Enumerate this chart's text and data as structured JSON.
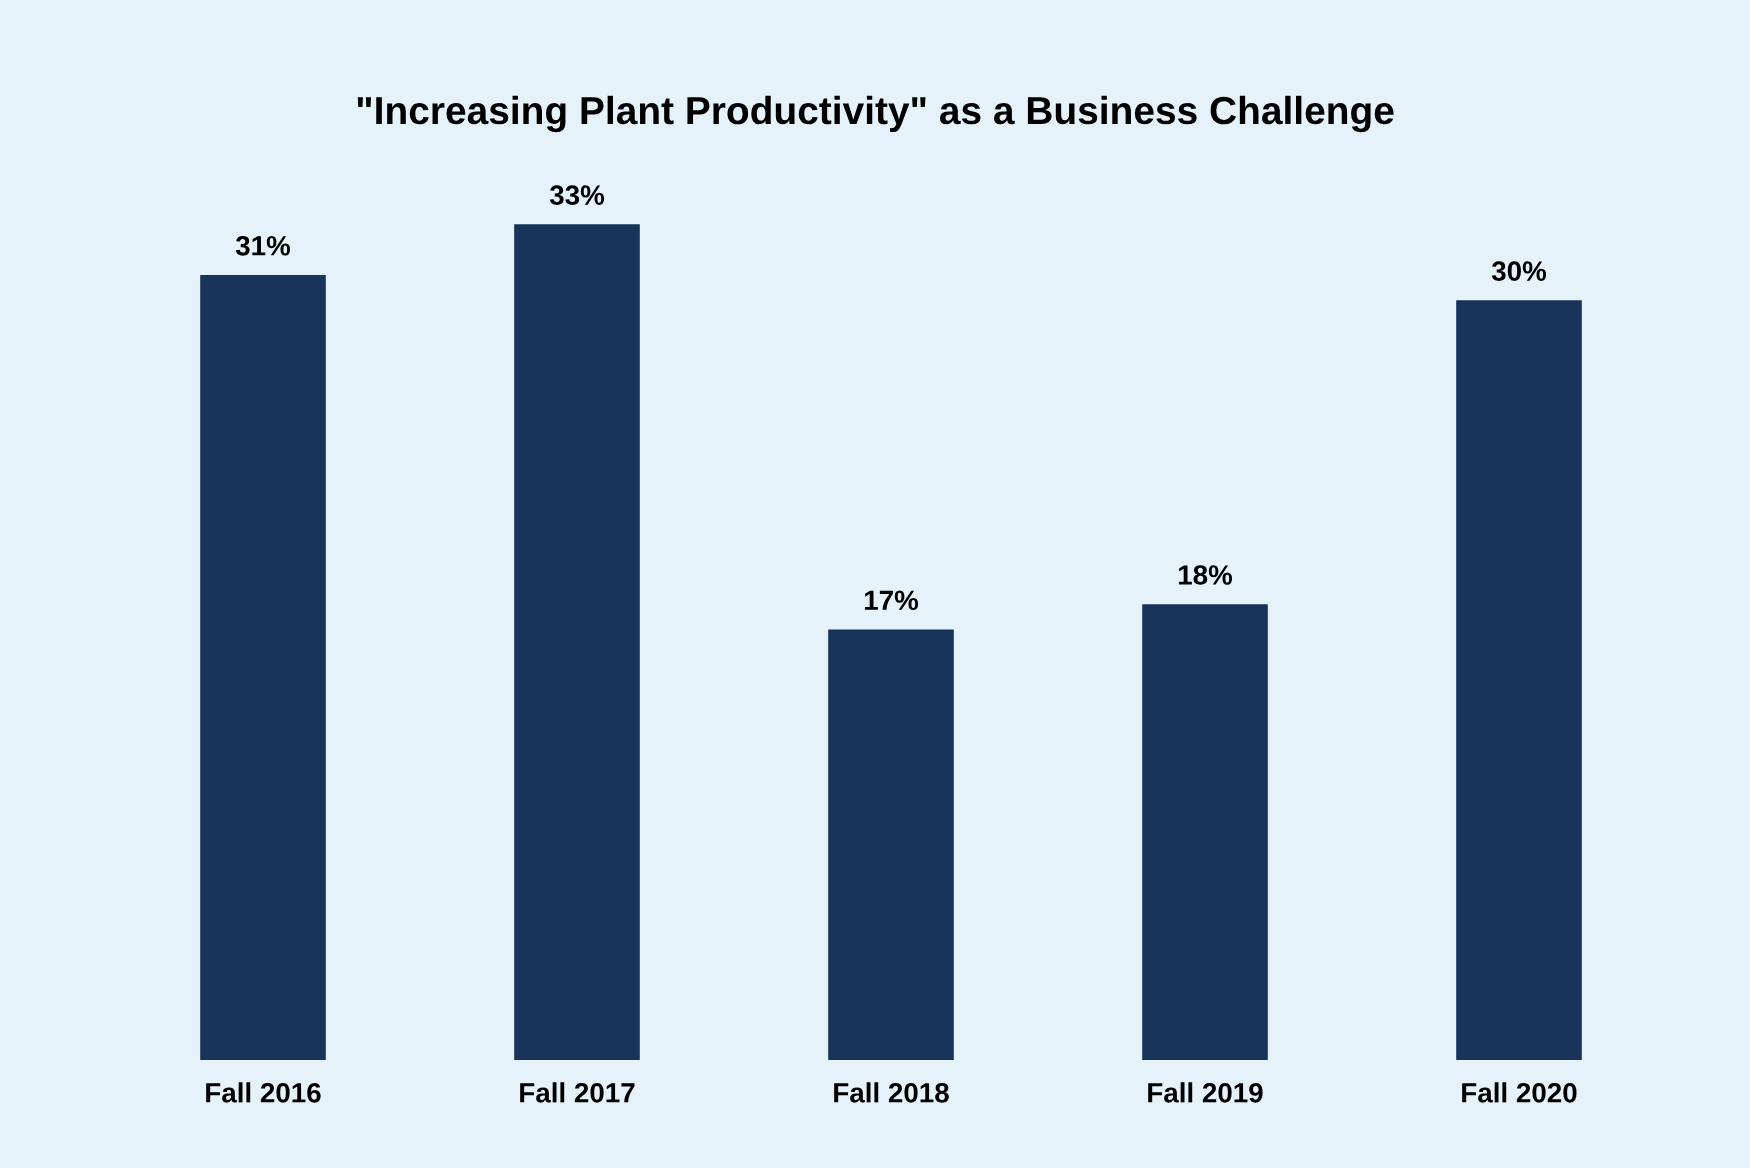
{
  "chart_data": {
    "type": "bar",
    "title": "\"Increasing Plant Productivity\" as a Business Challenge",
    "categories": [
      "Fall 2016",
      "Fall 2017",
      "Fall 2018",
      "Fall 2019",
      "Fall 2020"
    ],
    "values": [
      31,
      33,
      17,
      18,
      30
    ],
    "value_labels": [
      "31%",
      "33%",
      "17%",
      "18%",
      "30%"
    ],
    "color": "#17335a",
    "grid": false,
    "legend": false
  }
}
